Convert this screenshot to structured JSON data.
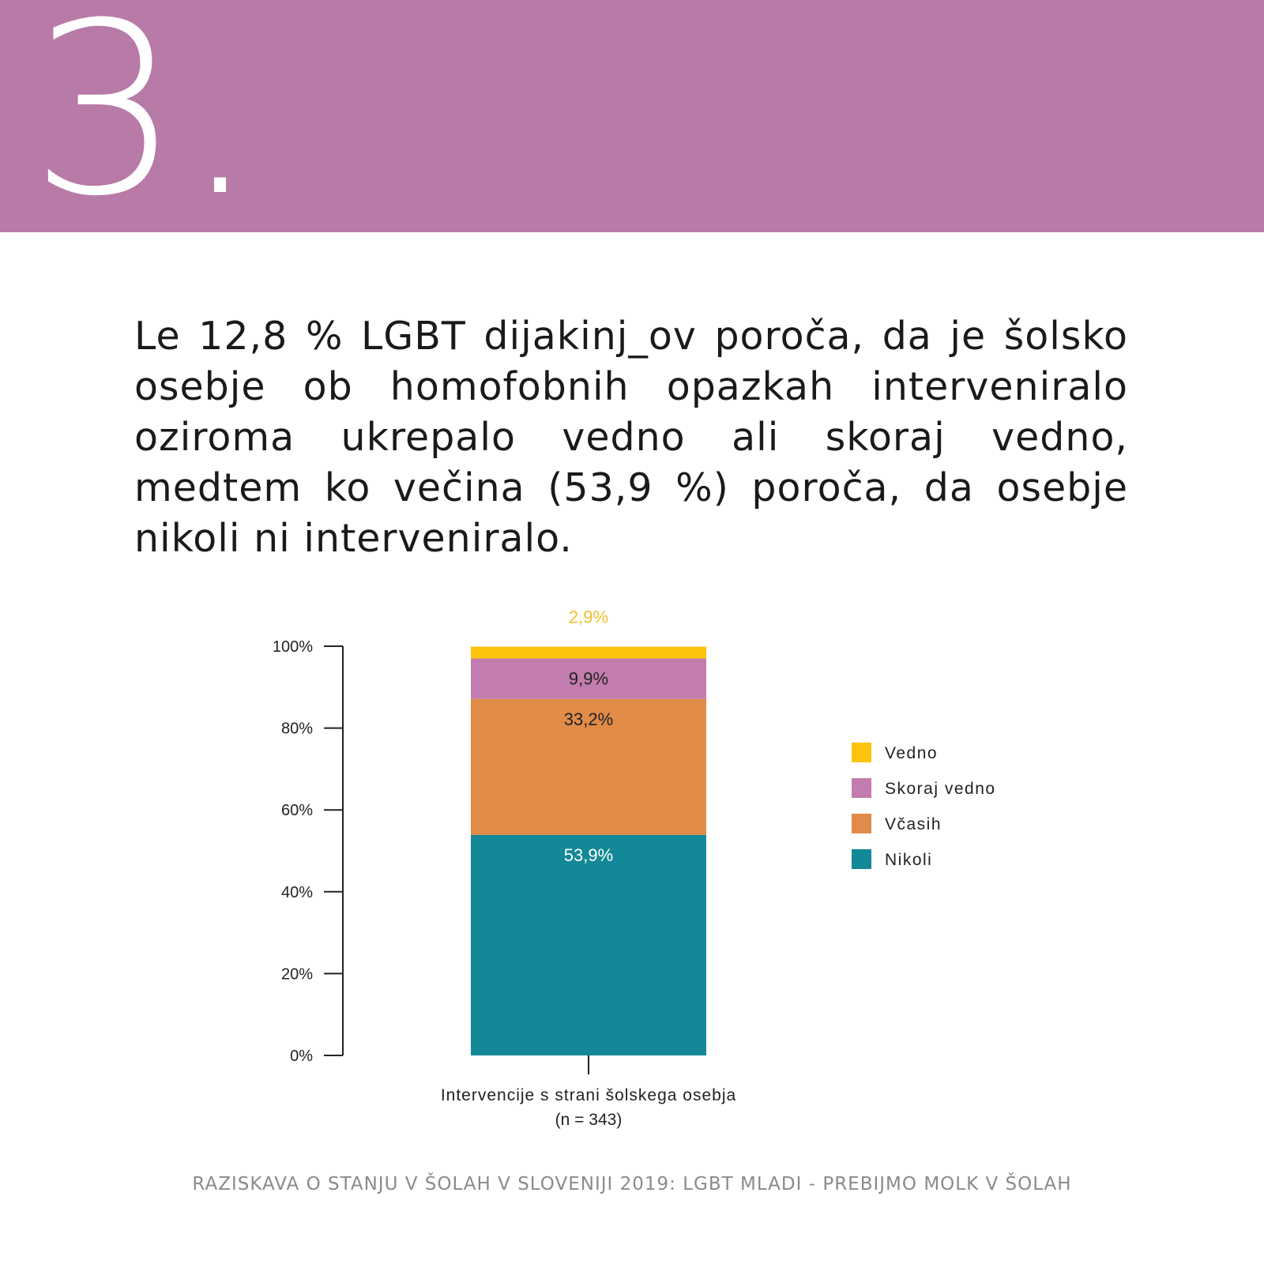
{
  "header": {
    "number": "3.",
    "band_color": "#b87aa7"
  },
  "headline": "Le 12,8 % LGBT dijakinj_ov poroča, da je šolsko osebje ob homofobnih opazkah interveniralo oziroma ukrepalo vedno ali skoraj vedno, medtem ko večina (53,9 %) poroča, da osebje nikoli ni interveniralo.",
  "chart_data": {
    "type": "bar",
    "stacked": true,
    "categories": [
      "Intervencije s strani šolskega osebja"
    ],
    "category_note": "(n = 343)",
    "series": [
      {
        "name": "Nikoli",
        "values": [
          53.9
        ],
        "label": "53,9%",
        "color": "#138896",
        "label_color": "#ffffff"
      },
      {
        "name": "Včasih",
        "values": [
          33.2
        ],
        "label": "33,2%",
        "color": "#e08b48",
        "label_color": "#222222"
      },
      {
        "name": "Skoraj vedno",
        "values": [
          9.9
        ],
        "label": "9,9%",
        "color": "#c27cad",
        "label_color": "#222222"
      },
      {
        "name": "Vedno",
        "values": [
          2.9
        ],
        "label": "2,9%",
        "color": "#fcc30b",
        "label_color": "#f2be2a"
      }
    ],
    "legend_order": [
      "Vedno",
      "Skoraj vedno",
      "Včasih",
      "Nikoli"
    ],
    "legend_position": "right",
    "yticks": [
      "0%",
      "20%",
      "40%",
      "60%",
      "80%",
      "100%"
    ],
    "ylim": [
      0,
      100
    ],
    "grid": false
  },
  "footer": "RAZISKAVA O STANJU V ŠOLAH V SLOVENIJI 2019: LGBT MLADI - PREBIJMO MOLK V ŠOLAH"
}
